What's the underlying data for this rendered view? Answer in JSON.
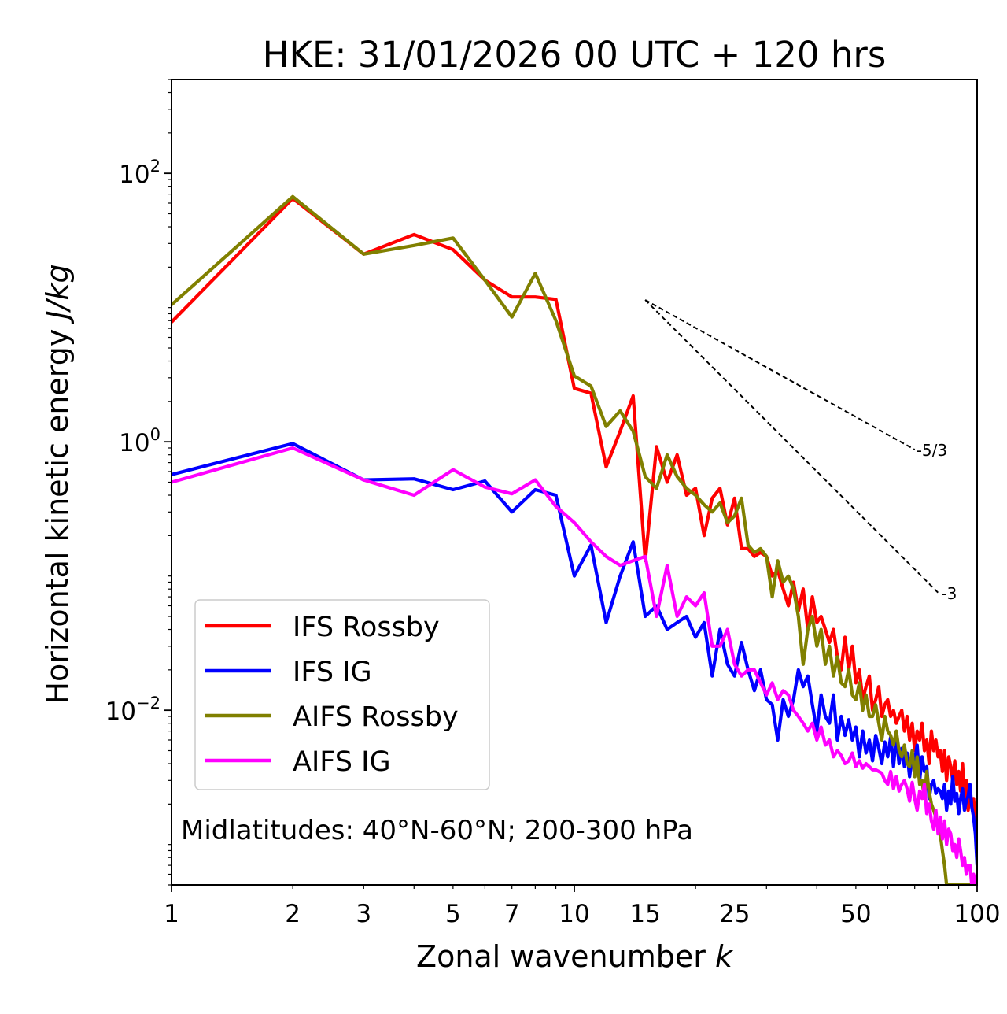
{
  "chart_data": {
    "type": "line",
    "title": "HKE: 31/01/2026 00 UTC + 120 hrs",
    "xlabel": "Zonal wavenumber",
    "xlabel_var": "k",
    "ylabel": "Horizontal kinetic energy",
    "ylabel_unit": "J/kg",
    "xscale": "log",
    "yscale": "log",
    "xlim": [
      1,
      100
    ],
    "ylim": [
      0.0005,
      500
    ],
    "x_ticks": [
      {
        "value": 1,
        "label": "1"
      },
      {
        "value": 2,
        "label": "2"
      },
      {
        "value": 3,
        "label": "3"
      },
      {
        "value": 5,
        "label": "5"
      },
      {
        "value": 7,
        "label": "7"
      },
      {
        "value": 10,
        "label": "10"
      },
      {
        "value": 15,
        "label": "15"
      },
      {
        "value": 25,
        "label": "25"
      },
      {
        "value": 50,
        "label": "50"
      },
      {
        "value": 100,
        "label": "100"
      }
    ],
    "y_ticks": [
      {
        "value": 100,
        "base": "10",
        "exp": "2"
      },
      {
        "value": 1,
        "base": "10",
        "exp": "0"
      },
      {
        "value": 0.01,
        "base": "10",
        "exp": "−2"
      }
    ],
    "annotation": "Midlatitudes: 40°N-60°N; 200-300 hPa",
    "legend_position": "lower-left",
    "reference_lines": [
      {
        "label": "-5/3",
        "slope": -1.6667,
        "x0": 15,
        "y0": 11.4,
        "x1": 70
      },
      {
        "label": "-3",
        "slope": -3,
        "x0": 15,
        "y0": 11.4,
        "x1": 80
      }
    ],
    "series": [
      {
        "name": "IFS Rossby",
        "color": "#ff0000",
        "x": [
          1,
          2,
          3,
          4,
          5,
          6,
          7,
          8,
          9,
          10,
          11,
          12,
          13,
          14,
          15,
          16,
          17,
          18,
          19,
          20,
          21,
          22,
          23,
          24,
          25,
          26,
          27,
          28,
          29,
          30,
          31,
          32,
          33,
          34,
          35,
          36,
          37,
          38,
          39,
          40,
          41,
          42,
          43,
          44,
          45,
          46,
          47,
          48,
          49,
          50,
          51,
          52,
          53,
          54,
          55,
          56,
          57,
          58,
          59,
          60,
          61,
          62,
          63,
          64,
          65,
          66,
          67,
          68,
          69,
          70,
          71,
          72,
          73,
          74,
          75,
          76,
          77,
          78,
          79,
          80,
          81,
          82,
          83,
          84,
          85,
          86,
          87,
          88,
          89,
          90,
          91,
          92,
          93,
          94,
          95,
          96,
          97,
          98,
          99,
          100
        ],
        "values": [
          7.8,
          65,
          25,
          35,
          27,
          16,
          12,
          12,
          11.5,
          2.5,
          2.3,
          0.65,
          1.2,
          2.2,
          0.13,
          0.92,
          0.5,
          0.8,
          0.4,
          0.45,
          0.2,
          0.38,
          0.45,
          0.24,
          0.38,
          0.16,
          0.16,
          0.14,
          0.15,
          0.14,
          0.1,
          0.11,
          0.08,
          0.06,
          0.09,
          0.055,
          0.08,
          0.04,
          0.07,
          0.045,
          0.05,
          0.04,
          0.032,
          0.04,
          0.025,
          0.02,
          0.035,
          0.02,
          0.03,
          0.016,
          0.02,
          0.012,
          0.015,
          0.018,
          0.01,
          0.012,
          0.015,
          0.009,
          0.011,
          0.012,
          0.009,
          0.01,
          0.008,
          0.009,
          0.01,
          0.007,
          0.009,
          0.006,
          0.008,
          0.005,
          0.007,
          0.006,
          0.008,
          0.005,
          0.006,
          0.004,
          0.007,
          0.005,
          0.006,
          0.0045,
          0.005,
          0.0035,
          0.005,
          0.003,
          0.0045,
          0.0038,
          0.003,
          0.0042,
          0.0028,
          0.0035,
          0.0025,
          0.004,
          0.0022,
          0.003,
          0.0018,
          0.0025,
          0.002,
          0.0022,
          0.0015,
          0.0012
        ]
      },
      {
        "name": "IFS IG",
        "color": "#0000ff",
        "x": [
          1,
          2,
          3,
          4,
          5,
          6,
          7,
          8,
          9,
          10,
          11,
          12,
          13,
          14,
          15,
          16,
          17,
          18,
          19,
          20,
          21,
          22,
          23,
          24,
          25,
          26,
          27,
          28,
          29,
          30,
          31,
          32,
          33,
          34,
          35,
          36,
          37,
          38,
          39,
          40,
          41,
          42,
          43,
          44,
          45,
          46,
          47,
          48,
          49,
          50,
          51,
          52,
          53,
          54,
          55,
          56,
          57,
          58,
          59,
          60,
          61,
          62,
          63,
          64,
          65,
          66,
          67,
          68,
          69,
          70,
          71,
          72,
          73,
          74,
          75,
          76,
          77,
          78,
          79,
          80,
          81,
          82,
          83,
          84,
          85,
          86,
          87,
          88,
          89,
          90,
          91,
          92,
          93,
          94,
          95,
          96,
          97,
          98,
          99,
          100
        ],
        "values": [
          0.57,
          0.97,
          0.52,
          0.53,
          0.44,
          0.51,
          0.3,
          0.44,
          0.4,
          0.1,
          0.17,
          0.045,
          0.1,
          0.18,
          0.05,
          0.06,
          0.04,
          0.045,
          0.05,
          0.035,
          0.045,
          0.018,
          0.04,
          0.022,
          0.018,
          0.032,
          0.02,
          0.014,
          0.02,
          0.012,
          0.011,
          0.006,
          0.012,
          0.009,
          0.012,
          0.02,
          0.015,
          0.018,
          0.011,
          0.007,
          0.013,
          0.009,
          0.008,
          0.013,
          0.006,
          0.009,
          0.0065,
          0.0085,
          0.006,
          0.0075,
          0.0045,
          0.007,
          0.0048,
          0.006,
          0.0042,
          0.0065,
          0.0052,
          0.004,
          0.0058,
          0.0045,
          0.0063,
          0.0038,
          0.0065,
          0.004,
          0.0052,
          0.0038,
          0.0048,
          0.0032,
          0.0045,
          0.0042,
          0.0055,
          0.003,
          0.0045,
          0.0035,
          0.0038,
          0.0022,
          0.0028,
          0.003,
          0.0024,
          0.0026,
          0.0025,
          0.0022,
          0.0028,
          0.0018,
          0.0025,
          0.002,
          0.0032,
          0.0021,
          0.0024,
          0.0017,
          0.0022,
          0.0026,
          0.0018,
          0.0021,
          0.0023,
          0.0028,
          0.0019,
          0.0016,
          0.0012,
          0.0007
        ]
      },
      {
        "name": "AIFS Rossby",
        "color": "#808000",
        "x": [
          1,
          2,
          3,
          4,
          5,
          6,
          7,
          8,
          9,
          10,
          11,
          12,
          13,
          14,
          15,
          16,
          17,
          18,
          19,
          20,
          21,
          22,
          23,
          24,
          25,
          26,
          27,
          28,
          29,
          30,
          31,
          32,
          33,
          34,
          35,
          36,
          37,
          38,
          39,
          40,
          41,
          42,
          43,
          44,
          45,
          46,
          47,
          48,
          49,
          50,
          51,
          52,
          53,
          54,
          55,
          56,
          57,
          58,
          59,
          60,
          61,
          62,
          63,
          64,
          65,
          66,
          67,
          68,
          69,
          70,
          71,
          72,
          73,
          74,
          75,
          76,
          77,
          78,
          79,
          80,
          81,
          82,
          83,
          84,
          85,
          86,
          87,
          88,
          89,
          90,
          91,
          92,
          93,
          94,
          95,
          96,
          97,
          98,
          99,
          100
        ],
        "values": [
          10.5,
          67,
          25,
          29,
          33,
          16,
          8.5,
          18,
          8,
          3.1,
          2.6,
          1.3,
          1.7,
          1.2,
          0.55,
          0.45,
          0.8,
          0.55,
          0.45,
          0.4,
          0.34,
          0.3,
          0.35,
          0.25,
          0.28,
          0.38,
          0.17,
          0.15,
          0.16,
          0.14,
          0.07,
          0.13,
          0.09,
          0.1,
          0.08,
          0.05,
          0.022,
          0.04,
          0.05,
          0.03,
          0.04,
          0.022,
          0.03,
          0.018,
          0.025,
          0.016,
          0.015,
          0.02,
          0.013,
          0.012,
          0.016,
          0.01,
          0.013,
          0.009,
          0.009,
          0.011,
          0.008,
          0.006,
          0.009,
          0.007,
          0.0065,
          0.0055,
          0.007,
          0.005,
          0.0045,
          0.0055,
          0.004,
          0.0038,
          0.005,
          0.0032,
          0.0045,
          0.0028,
          0.003,
          0.0022,
          0.0035,
          0.0025,
          0.002,
          0.0018,
          0.0016,
          0.0014,
          0.0012,
          0.0009,
          0.0007,
          0.0005,
          0.0005,
          0.0005,
          0.0005,
          0.0005,
          0.0005,
          0.0005,
          0.0005,
          0.0005,
          0.0005,
          0.0005,
          0.0005,
          0.0005,
          0.0005,
          0.0005,
          0.0005,
          0.0005
        ]
      },
      {
        "name": "AIFS IG",
        "color": "#ff00ff",
        "x": [
          1,
          2,
          3,
          4,
          5,
          6,
          7,
          8,
          9,
          10,
          11,
          12,
          13,
          14,
          15,
          16,
          17,
          18,
          19,
          20,
          21,
          22,
          23,
          24,
          25,
          26,
          27,
          28,
          29,
          30,
          31,
          32,
          33,
          34,
          35,
          36,
          37,
          38,
          39,
          40,
          41,
          42,
          43,
          44,
          45,
          46,
          47,
          48,
          49,
          50,
          51,
          52,
          53,
          54,
          55,
          56,
          57,
          58,
          59,
          60,
          61,
          62,
          63,
          64,
          65,
          66,
          67,
          68,
          69,
          70,
          71,
          72,
          73,
          74,
          75,
          76,
          77,
          78,
          79,
          80,
          81,
          82,
          83,
          84,
          85,
          86,
          87,
          88,
          89,
          90,
          91,
          92,
          93,
          94,
          95,
          96,
          97,
          98,
          99,
          100
        ],
        "values": [
          0.5,
          0.9,
          0.52,
          0.4,
          0.62,
          0.46,
          0.41,
          0.52,
          0.33,
          0.25,
          0.18,
          0.14,
          0.12,
          0.13,
          0.14,
          0.05,
          0.12,
          0.05,
          0.07,
          0.06,
          0.075,
          0.03,
          0.03,
          0.04,
          0.022,
          0.018,
          0.02,
          0.02,
          0.016,
          0.013,
          0.016,
          0.012,
          0.014,
          0.013,
          0.01,
          0.009,
          0.008,
          0.007,
          0.008,
          0.006,
          0.0075,
          0.0055,
          0.006,
          0.0045,
          0.005,
          0.0046,
          0.004,
          0.0042,
          0.0048,
          0.0038,
          0.0042,
          0.0037,
          0.004,
          0.0038,
          0.0036,
          0.0036,
          0.0035,
          0.0034,
          0.003,
          0.0028,
          0.0035,
          0.0026,
          0.0032,
          0.0025,
          0.0028,
          0.003,
          0.0026,
          0.0021,
          0.0029,
          0.0022,
          0.0018,
          0.0025,
          0.0022,
          0.0028,
          0.0017,
          0.002,
          0.0015,
          0.0013,
          0.0018,
          0.0012,
          0.0016,
          0.0011,
          0.0015,
          0.001,
          0.0013,
          0.0012,
          0.0009,
          0.001,
          0.0008,
          0.0011,
          0.0009,
          0.0007,
          0.0008,
          0.0006,
          0.0007,
          0.0007,
          0.0005,
          0.0006,
          0.0005,
          0.0005
        ]
      }
    ]
  }
}
